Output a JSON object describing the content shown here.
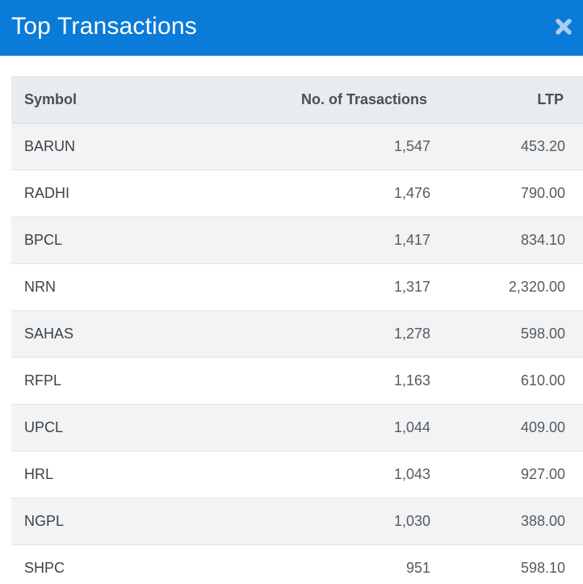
{
  "modal": {
    "title": "Top Transactions",
    "close_icon": "close-icon",
    "header_color": "#0a7bd8"
  },
  "table": {
    "columns": [
      "Symbol",
      "No. of Trasactions",
      "LTP"
    ],
    "rows": [
      {
        "symbol": "BARUN",
        "transactions": "1,547",
        "ltp": "453.20"
      },
      {
        "symbol": "RADHI",
        "transactions": "1,476",
        "ltp": "790.00"
      },
      {
        "symbol": "BPCL",
        "transactions": "1,417",
        "ltp": "834.10"
      },
      {
        "symbol": "NRN",
        "transactions": "1,317",
        "ltp": "2,320.00"
      },
      {
        "symbol": "SAHAS",
        "transactions": "1,278",
        "ltp": "598.00"
      },
      {
        "symbol": "RFPL",
        "transactions": "1,163",
        "ltp": "610.00"
      },
      {
        "symbol": "UPCL",
        "transactions": "1,044",
        "ltp": "409.00"
      },
      {
        "symbol": "HRL",
        "transactions": "1,043",
        "ltp": "927.00"
      },
      {
        "symbol": "NGPL",
        "transactions": "1,030",
        "ltp": "388.00"
      },
      {
        "symbol": "SHPC",
        "transactions": "951",
        "ltp": "598.10"
      }
    ]
  }
}
